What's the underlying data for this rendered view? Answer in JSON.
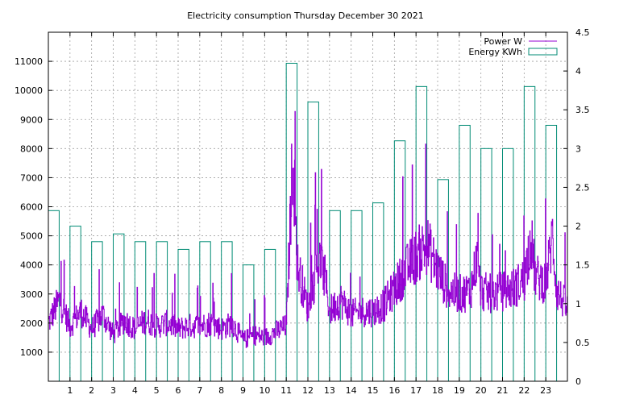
{
  "chart_data": {
    "type": "bar",
    "title": "Electricity consumption Thursday December 30 2021",
    "xlabel": "",
    "ylabel": "",
    "x_ticks": [
      "1",
      "2",
      "3",
      "4",
      "5",
      "6",
      "7",
      "8",
      "9",
      "10",
      "11",
      "12",
      "13",
      "14",
      "15",
      "16",
      "17",
      "18",
      "19",
      "20",
      "21",
      "22",
      "23"
    ],
    "xlim": [
      0,
      24
    ],
    "ylim_left": [
      0,
      12000
    ],
    "ylim_right": [
      0,
      4.5
    ],
    "y_ticks_left": [
      "1000",
      "2000",
      "3000",
      "4000",
      "5000",
      "6000",
      "7000",
      "8000",
      "9000",
      "10000",
      "11000"
    ],
    "y_ticks_right": [
      "0",
      "0.5",
      "1",
      "1.5",
      "2",
      "2.5",
      "3",
      "3.5",
      "4",
      "4.5"
    ],
    "grid": true,
    "legend_position": "top-right",
    "series": [
      {
        "name": "Power W",
        "axis": "left",
        "color": "#9400d3",
        "type": "line",
        "x": [
          0.0,
          0.5,
          1.0,
          1.5,
          2.0,
          2.5,
          3.0,
          3.5,
          4.0,
          4.5,
          5.0,
          5.5,
          6.0,
          6.5,
          7.0,
          7.5,
          8.0,
          8.5,
          9.0,
          9.5,
          10.0,
          10.5,
          11.0,
          11.3,
          11.5,
          12.0,
          12.5,
          12.8,
          13.0,
          13.5,
          14.0,
          14.5,
          15.0,
          15.5,
          16.0,
          16.5,
          17.0,
          17.5,
          18.0,
          18.5,
          19.0,
          19.5,
          19.8,
          20.0,
          20.5,
          21.0,
          21.5,
          22.0,
          22.3,
          22.5,
          23.0,
          23.3,
          23.5,
          24.0
        ],
        "y": [
          2000,
          2800,
          1900,
          2400,
          1800,
          2300,
          1600,
          2100,
          1800,
          2100,
          1900,
          2000,
          1800,
          1900,
          1900,
          2000,
          1800,
          2000,
          1400,
          1600,
          1500,
          1700,
          1900,
          8000,
          4000,
          2500,
          4200,
          3500,
          2400,
          2800,
          2300,
          2400,
          2400,
          2600,
          3200,
          3800,
          4300,
          4700,
          3800,
          3100,
          3000,
          3100,
          4200,
          3100,
          3000,
          3100,
          3200,
          3500,
          5000,
          3600,
          3400,
          5000,
          3100,
          2500
        ]
      },
      {
        "name": "Energy KWh",
        "axis": "right",
        "color": "#008b74",
        "type": "bar",
        "categories": [
          "0",
          "1",
          "2",
          "3",
          "4",
          "5",
          "6",
          "7",
          "8",
          "9",
          "10",
          "11",
          "12",
          "13",
          "14",
          "15",
          "16",
          "17",
          "18",
          "19",
          "20",
          "21",
          "22",
          "23"
        ],
        "values": [
          2.2,
          2.0,
          1.8,
          1.9,
          1.8,
          1.8,
          1.7,
          1.8,
          1.8,
          1.5,
          1.7,
          4.1,
          3.6,
          2.2,
          2.2,
          2.3,
          3.1,
          3.8,
          2.6,
          3.3,
          3.0,
          3.0,
          3.8,
          3.3
        ]
      }
    ]
  }
}
